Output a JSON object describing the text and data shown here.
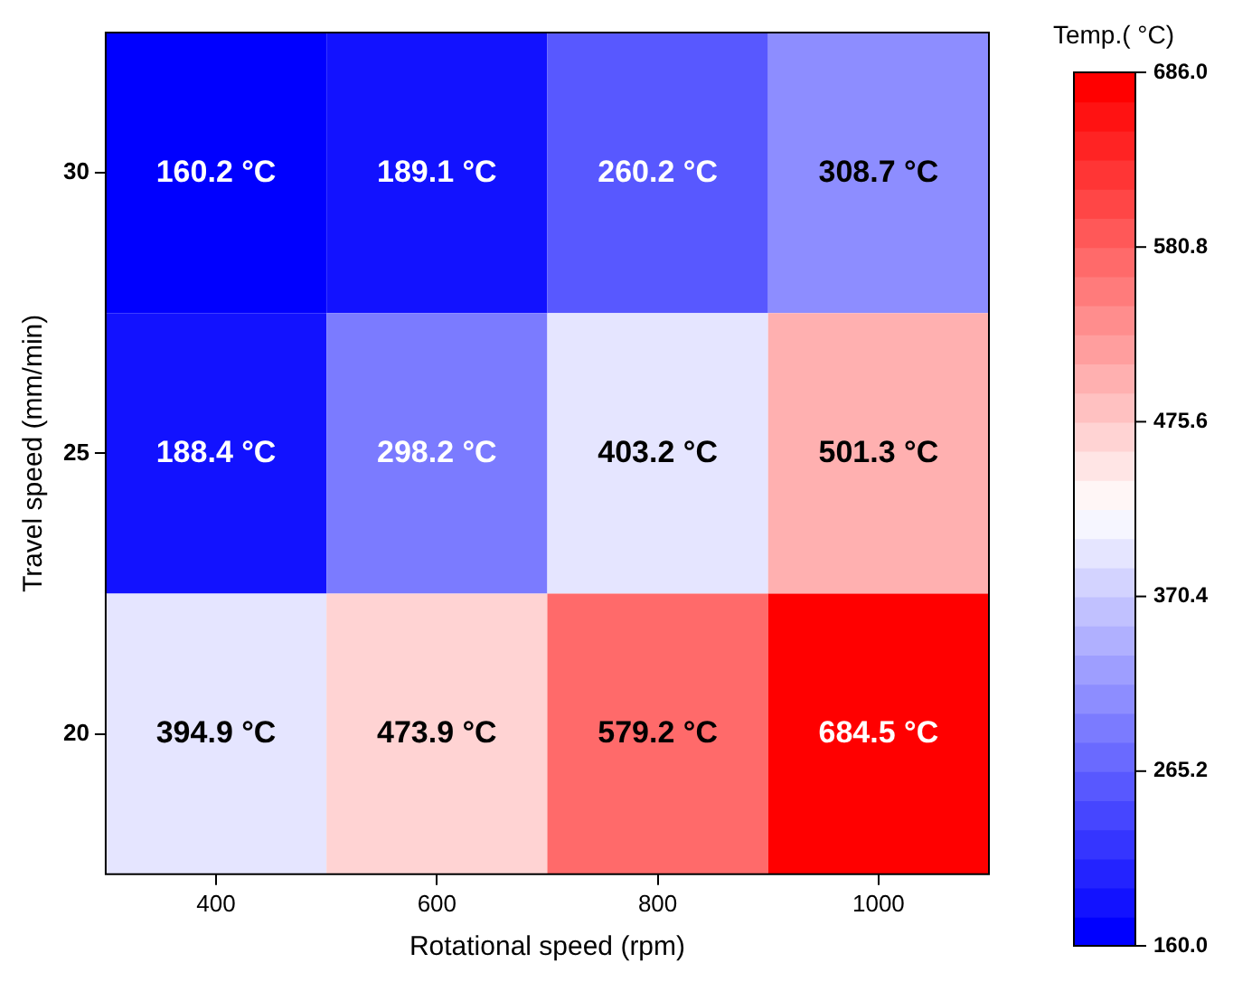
{
  "chart_data": {
    "type": "heatmap",
    "xlabel": "Rotational speed (rpm)",
    "ylabel": "Travel speed (mm/min)",
    "clabel": "Temp.( °C)",
    "categories": [
      "400",
      "600",
      "800",
      "1000"
    ],
    "y_categories": [
      "30",
      "25",
      "20"
    ],
    "cells": [
      [
        160.2,
        189.1,
        260.2,
        308.7
      ],
      [
        188.4,
        298.2,
        403.2,
        501.3
      ],
      [
        394.9,
        473.9,
        579.2,
        684.5
      ]
    ],
    "cell_labels": [
      [
        "160.2 °C",
        "189.1 °C",
        "260.2 °C",
        "308.7 °C"
      ],
      [
        "188.4 °C",
        "298.2 °C",
        "403.2 °C",
        "501.3 °C"
      ],
      [
        "394.9 °C",
        "473.9 °C",
        "579.2 °C",
        "684.5 °C"
      ]
    ],
    "clim": [
      160.0,
      686.0
    ],
    "cticks": [
      {
        "value": 160.0,
        "label": "160.0"
      },
      {
        "value": 265.2,
        "label": "265.2"
      },
      {
        "value": 370.4,
        "label": "370.4"
      },
      {
        "value": 475.6,
        "label": "475.6"
      },
      {
        "value": 580.8,
        "label": "580.8"
      },
      {
        "value": 686.0,
        "label": "686.0"
      }
    ]
  }
}
